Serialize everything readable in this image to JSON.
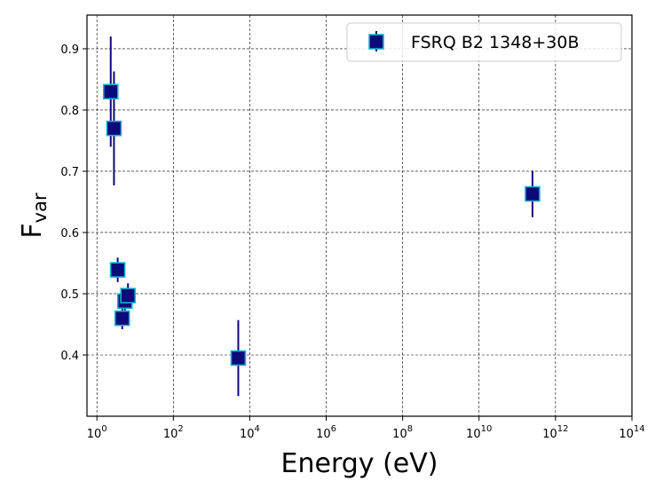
{
  "chart_data": {
    "type": "scatter",
    "title": "",
    "xlabel": "Energy (eV)",
    "ylabel_main": "F",
    "ylabel_sub": "var",
    "xscale": "log",
    "xlim": [
      0.55,
      100000000000000.0
    ],
    "ylim": [
      0.3,
      0.955
    ],
    "xticks": [
      {
        "base": "10",
        "exp": "0",
        "value": 1
      },
      {
        "base": "10",
        "exp": "2",
        "value": 100
      },
      {
        "base": "10",
        "exp": "4",
        "value": 10000
      },
      {
        "base": "10",
        "exp": "6",
        "value": 1000000
      },
      {
        "base": "10",
        "exp": "8",
        "value": 100000000
      },
      {
        "base": "10",
        "exp": "10",
        "value": 10000000000
      },
      {
        "base": "10",
        "exp": "12",
        "value": 1000000000000
      },
      {
        "base": "10",
        "exp": "14",
        "value": 100000000000000
      }
    ],
    "yticks": [
      0.4,
      0.5,
      0.6,
      0.7,
      0.8,
      0.9
    ],
    "grid": true,
    "legend_position": "upper right",
    "marker_color": "#0a0a7a",
    "marker_edge_color": "#1ab0cc",
    "errorbar_color": "#0a0a7a",
    "series": [
      {
        "name": "FSRQ B2 1348+30B",
        "points": [
          {
            "x": 2.3,
            "y": 0.83,
            "yerr": 0.09
          },
          {
            "x": 2.8,
            "y": 0.77,
            "yerr": 0.093
          },
          {
            "x": 3.5,
            "y": 0.539,
            "yerr": 0.02
          },
          {
            "x": 4.6,
            "y": 0.46,
            "yerr": 0.018
          },
          {
            "x": 5.4,
            "y": 0.488,
            "yerr": 0.02
          },
          {
            "x": 6.5,
            "y": 0.497,
            "yerr": 0.02
          },
          {
            "x": 5000,
            "y": 0.395,
            "yerr": 0.062
          },
          {
            "x": 250000000000.0,
            "y": 0.663,
            "yerr": 0.038
          }
        ]
      }
    ]
  }
}
